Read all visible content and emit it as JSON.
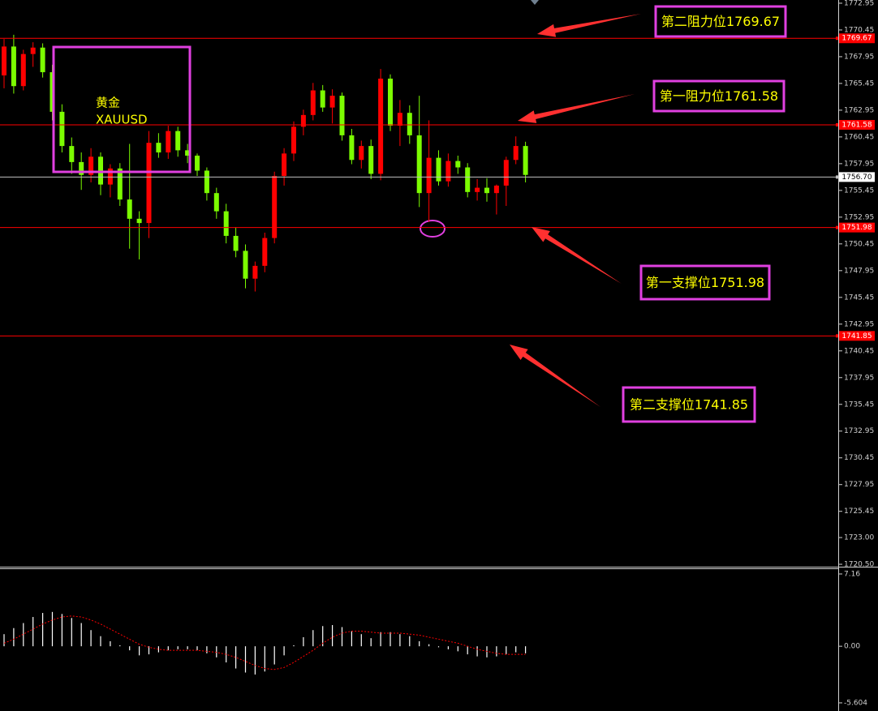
{
  "chart_data": [
    {
      "type": "candlestick",
      "open": [
        1766.2,
        1768.9,
        1765.2,
        1768.2,
        1768.8,
        1766.5,
        1762.8,
        1759.6,
        1758.1,
        1756.9,
        1758.6,
        1756.0,
        1757.5,
        1754.6,
        1752.8,
        1752.4,
        1759.9,
        1759.0,
        1761.0,
        1759.2,
        1758.7,
        1757.3,
        1755.2,
        1753.5,
        1751.2,
        1749.8,
        1747.2,
        1748.4,
        1751.0,
        1756.8,
        1758.9,
        1761.4,
        1762.5,
        1764.8,
        1763.2,
        1764.3,
        1760.6,
        1758.3,
        1759.6,
        1757.0,
        1765.9,
        1761.5,
        1762.7,
        1760.6,
        1755.2,
        1758.5,
        1756.3,
        1758.2,
        1757.6,
        1755.3,
        1755.7,
        1755.2,
        1755.9,
        1758.3,
        1759.6
      ],
      "high": [
        1769.6,
        1770.0,
        1768.6,
        1769.3,
        1769.2,
        1767.2,
        1763.5,
        1760.4,
        1759.0,
        1759.4,
        1759.0,
        1757.9,
        1758.0,
        1759.8,
        1753.5,
        1761.0,
        1760.8,
        1761.5,
        1761.4,
        1759.8,
        1758.9,
        1757.6,
        1755.7,
        1754.2,
        1752.0,
        1750.4,
        1748.8,
        1751.5,
        1757.2,
        1759.4,
        1761.9,
        1763.0,
        1765.5,
        1765.3,
        1764.9,
        1764.6,
        1761.2,
        1760.1,
        1760.2,
        1766.8,
        1766.3,
        1763.9,
        1763.4,
        1764.3,
        1762.0,
        1759.2,
        1758.9,
        1758.7,
        1758.0,
        1756.5,
        1756.6,
        1756.0,
        1758.6,
        1760.5,
        1760.0
      ],
      "low": [
        1765.0,
        1764.5,
        1764.8,
        1767.0,
        1766.0,
        1762.0,
        1759.0,
        1757.0,
        1755.5,
        1756.2,
        1755.0,
        1754.8,
        1754.0,
        1750.0,
        1749.0,
        1751.0,
        1758.5,
        1758.4,
        1758.6,
        1758.0,
        1756.8,
        1754.5,
        1752.8,
        1750.5,
        1749.2,
        1746.3,
        1746.0,
        1747.8,
        1750.5,
        1755.9,
        1758.2,
        1760.6,
        1762.0,
        1762.8,
        1761.7,
        1760.1,
        1757.9,
        1757.5,
        1756.5,
        1756.4,
        1761.0,
        1759.6,
        1759.8,
        1753.9,
        1752.5,
        1755.9,
        1755.8,
        1757.0,
        1754.8,
        1754.5,
        1754.4,
        1753.2,
        1754.0,
        1757.9,
        1756.2
      ],
      "close": [
        1768.9,
        1765.2,
        1768.2,
        1768.8,
        1766.5,
        1762.8,
        1759.6,
        1758.1,
        1756.9,
        1758.6,
        1756.0,
        1757.5,
        1754.6,
        1752.8,
        1752.4,
        1759.9,
        1759.0,
        1761.0,
        1759.2,
        1758.7,
        1757.3,
        1755.2,
        1753.5,
        1751.2,
        1749.8,
        1747.2,
        1748.4,
        1751.0,
        1756.8,
        1758.9,
        1761.4,
        1762.5,
        1764.8,
        1763.2,
        1764.3,
        1760.6,
        1758.3,
        1759.6,
        1757.0,
        1765.9,
        1761.5,
        1762.7,
        1760.6,
        1755.2,
        1758.5,
        1756.3,
        1758.2,
        1757.6,
        1755.3,
        1755.7,
        1755.2,
        1755.9,
        1758.3,
        1759.6,
        1756.9
      ],
      "up_color": "#ff0000",
      "down_color": "#7cfc00",
      "ylim": [
        1720.35,
        1773.25
      ],
      "yticks": [
        1772.95,
        1770.45,
        1767.95,
        1765.45,
        1762.95,
        1760.45,
        1757.95,
        1755.45,
        1752.95,
        1750.45,
        1747.95,
        1745.45,
        1742.95,
        1740.45,
        1737.95,
        1735.45,
        1732.95,
        1730.45,
        1727.95,
        1725.45,
        {
          "value": 1723.0,
          "label": "1723.00"
        },
        {
          "value": 1720.5,
          "label": "1720.50"
        }
      ],
      "levels": [
        1769.67,
        1761.58,
        {
          "value": 1756.7,
          "label": "1756.70"
        },
        1751.98,
        1741.85
      ],
      "level_colors": [
        "#ff0000",
        "#ff0000",
        "#c0c0c0",
        "#ff0000",
        "#ff0000"
      ],
      "annotations": [
        "第二阻力位1769.67",
        "第一阻力位1761.58",
        "第一支撑位1751.98",
        "第二支撑位1741.85"
      ],
      "symbol_box": [
        "黄金",
        "XAUUSD"
      ]
    },
    {
      "type": "macd",
      "values": [
        1.2,
        1.8,
        2.3,
        2.9,
        3.3,
        3.4,
        3.2,
        2.8,
        2.3,
        1.6,
        1.0,
        0.5,
        0.1,
        -0.4,
        -0.9,
        -0.8,
        -0.6,
        -0.4,
        -0.3,
        -0.3,
        -0.4,
        -0.7,
        -1.1,
        -1.6,
        -2.2,
        -2.6,
        -2.8,
        -2.5,
        -1.8,
        -0.9,
        0.1,
        0.9,
        1.6,
        2.0,
        2.1,
        1.9,
        1.5,
        1.2,
        0.8,
        1.4,
        1.4,
        1.2,
        1.0,
        0.5,
        0.2,
        -0.1,
        -0.3,
        -0.5,
        -0.8,
        -1.0,
        -1.1,
        -1.0,
        -0.8,
        -0.6,
        -0.7
      ],
      "signal": [
        0.3,
        0.7,
        1.2,
        1.7,
        2.2,
        2.6,
        2.9,
        3.0,
        2.9,
        2.6,
        2.2,
        1.7,
        1.2,
        0.7,
        0.2,
        -0.1,
        -0.3,
        -0.4,
        -0.4,
        -0.4,
        -0.4,
        -0.5,
        -0.6,
        -0.8,
        -1.1,
        -1.5,
        -1.9,
        -2.2,
        -2.3,
        -2.1,
        -1.6,
        -1.0,
        -0.4,
        0.3,
        0.9,
        1.3,
        1.5,
        1.5,
        1.4,
        1.3,
        1.3,
        1.3,
        1.2,
        1.1,
        0.9,
        0.7,
        0.5,
        0.3,
        0.0,
        -0.3,
        -0.5,
        -0.7,
        -0.8,
        -0.8,
        -0.8
      ],
      "color": "#ffffff",
      "signal_color": "#ff0000",
      "ylim": [
        -6.17,
        7.64
      ],
      "yticks": [
        7.16,
        {
          "value": 0,
          "label": "0.00"
        },
        -5.604
      ]
    }
  ]
}
